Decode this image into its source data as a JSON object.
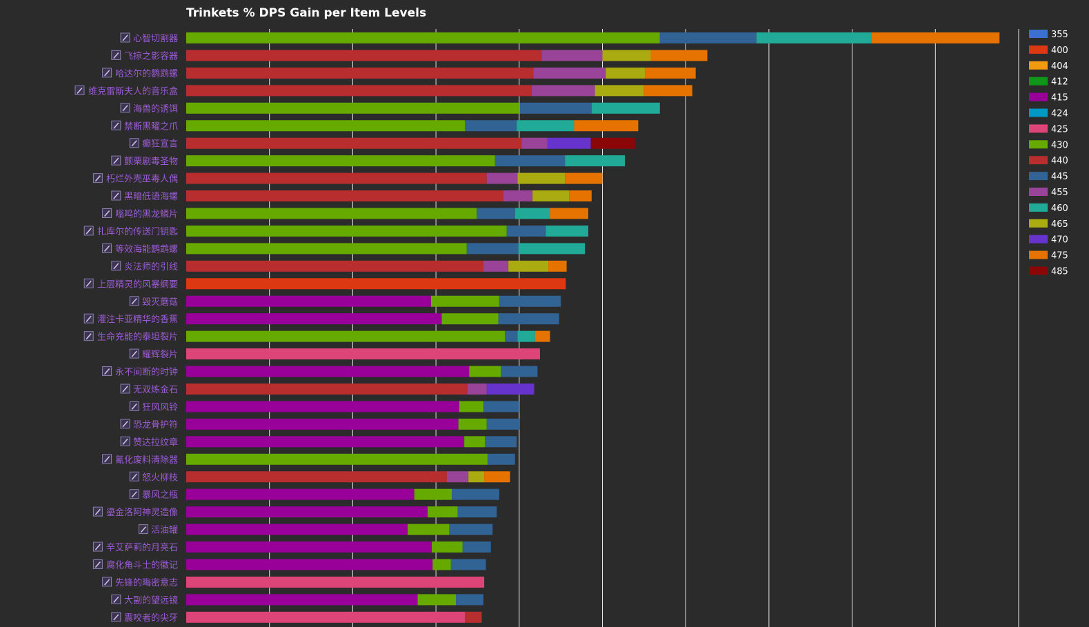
{
  "chart_data": {
    "type": "bar",
    "orientation": "horizontal",
    "stacked": true,
    "title": "Trinkets % DPS Gain per Item Levels",
    "xlim": [
      0,
      10
    ],
    "grid": true,
    "legend_position": "right",
    "legend": [
      {
        "name": "355",
        "color": "#3c6fd1"
      },
      {
        "name": "400",
        "color": "#dc3912"
      },
      {
        "name": "404",
        "color": "#f29a0f"
      },
      {
        "name": "412",
        "color": "#109618"
      },
      {
        "name": "415",
        "color": "#990099"
      },
      {
        "name": "424",
        "color": "#0099c6"
      },
      {
        "name": "425",
        "color": "#dd4477"
      },
      {
        "name": "430",
        "color": "#66aa00"
      },
      {
        "name": "440",
        "color": "#b82e2e"
      },
      {
        "name": "445",
        "color": "#316395"
      },
      {
        "name": "455",
        "color": "#994499"
      },
      {
        "name": "460",
        "color": "#22aa99"
      },
      {
        "name": "465",
        "color": "#aaaa11"
      },
      {
        "name": "470",
        "color": "#6633cc"
      },
      {
        "name": "475",
        "color": "#e67300"
      },
      {
        "name": "485",
        "color": "#8b0707"
      }
    ],
    "rows": [
      {
        "label": "心智切割器",
        "segments": [
          [
            "430",
            5.69
          ],
          [
            "445",
            1.16
          ],
          [
            "460",
            1.38
          ],
          [
            "475",
            1.54
          ]
        ]
      },
      {
        "label": "飞掠之影容器",
        "segments": [
          [
            "440",
            4.27
          ],
          [
            "455",
            0.73
          ],
          [
            "465",
            0.58
          ],
          [
            "475",
            0.68
          ]
        ]
      },
      {
        "label": "哈达尔的鹦鹉螺",
        "segments": [
          [
            "440",
            4.17
          ],
          [
            "455",
            0.87
          ],
          [
            "465",
            0.47
          ],
          [
            "475",
            0.61
          ]
        ]
      },
      {
        "label": "维克雷斯夫人的音乐盒",
        "segments": [
          [
            "440",
            4.15
          ],
          [
            "455",
            0.76
          ],
          [
            "465",
            0.59
          ],
          [
            "475",
            0.58
          ]
        ]
      },
      {
        "label": "海兽的诱饵",
        "segments": [
          [
            "430",
            4.01
          ],
          [
            "445",
            0.86
          ],
          [
            "460",
            0.82
          ]
        ]
      },
      {
        "label": "禁断黑曜之爪",
        "segments": [
          [
            "430",
            3.35
          ],
          [
            "445",
            0.62
          ],
          [
            "460",
            0.69
          ],
          [
            "475",
            0.77
          ]
        ]
      },
      {
        "label": "癫狂宣言",
        "segments": [
          [
            "440",
            4.03
          ],
          [
            "455",
            0.31
          ],
          [
            "470",
            0.52
          ],
          [
            "485",
            0.53
          ]
        ]
      },
      {
        "label": "颤栗剧毒圣物",
        "segments": [
          [
            "430",
            3.71
          ],
          [
            "445",
            0.84
          ],
          [
            "460",
            0.72
          ]
        ]
      },
      {
        "label": "朽烂外壳巫毒人偶",
        "segments": [
          [
            "440",
            3.61
          ],
          [
            "455",
            0.37
          ],
          [
            "465",
            0.57
          ],
          [
            "475",
            0.45
          ]
        ]
      },
      {
        "label": "黑暗低语海螺",
        "segments": [
          [
            "440",
            3.81
          ],
          [
            "455",
            0.35
          ],
          [
            "465",
            0.44
          ],
          [
            "475",
            0.27
          ]
        ]
      },
      {
        "label": "嗡鸣的黑龙鳞片",
        "segments": [
          [
            "430",
            3.49
          ],
          [
            "445",
            0.46
          ],
          [
            "460",
            0.42
          ],
          [
            "475",
            0.46
          ]
        ]
      },
      {
        "label": "扎库尔的传送门钥匙",
        "segments": [
          [
            "430",
            3.85
          ],
          [
            "445",
            0.47
          ],
          [
            "460",
            0.51
          ]
        ]
      },
      {
        "label": "等效海能鹦鹉螺",
        "segments": [
          [
            "430",
            3.37
          ],
          [
            "445",
            0.62
          ],
          [
            "460",
            0.8
          ]
        ]
      },
      {
        "label": "炎法师的引线",
        "segments": [
          [
            "440",
            3.57
          ],
          [
            "455",
            0.3
          ],
          [
            "465",
            0.48
          ],
          [
            "475",
            0.22
          ]
        ]
      },
      {
        "label": "上层精灵的风暴纲要",
        "segments": [
          [
            "400",
            4.56
          ]
        ]
      },
      {
        "label": "毁灭蘑菇",
        "segments": [
          [
            "415",
            2.94
          ],
          [
            "430",
            0.82
          ],
          [
            "445",
            0.74
          ]
        ]
      },
      {
        "label": "灌注卡亚精华的香蕉",
        "segments": [
          [
            "415",
            3.07
          ],
          [
            "430",
            0.68
          ],
          [
            "445",
            0.73
          ]
        ]
      },
      {
        "label": "生命充能的泰坦裂片",
        "segments": [
          [
            "430",
            3.83
          ],
          [
            "445",
            0.15
          ],
          [
            "460",
            0.21
          ],
          [
            "475",
            0.18
          ]
        ]
      },
      {
        "label": "耀辉裂片",
        "segments": [
          [
            "425",
            4.25
          ]
        ]
      },
      {
        "label": "永不间断的时钟",
        "segments": [
          [
            "415",
            3.4
          ],
          [
            "430",
            0.38
          ],
          [
            "445",
            0.44
          ]
        ]
      },
      {
        "label": "无双炼金石",
        "segments": [
          [
            "440",
            3.38
          ],
          [
            "455",
            0.23
          ],
          [
            "470",
            0.57
          ]
        ]
      },
      {
        "label": "狂风风铃",
        "segments": [
          [
            "415",
            3.28
          ],
          [
            "430",
            0.29
          ],
          [
            "445",
            0.43
          ]
        ]
      },
      {
        "label": "恐龙骨护符",
        "segments": [
          [
            "415",
            3.27
          ],
          [
            "430",
            0.34
          ],
          [
            "445",
            0.4
          ]
        ]
      },
      {
        "label": "赞达拉纹章",
        "segments": [
          [
            "415",
            3.34
          ],
          [
            "430",
            0.25
          ],
          [
            "445",
            0.38
          ]
        ]
      },
      {
        "label": "氰化废料清除器",
        "segments": [
          [
            "430",
            3.62
          ],
          [
            "445",
            0.33
          ]
        ]
      },
      {
        "label": "怒火柳枝",
        "segments": [
          [
            "440",
            3.13
          ],
          [
            "455",
            0.26
          ],
          [
            "465",
            0.19
          ],
          [
            "475",
            0.31
          ]
        ]
      },
      {
        "label": "暴风之瓶",
        "segments": [
          [
            "415",
            2.74
          ],
          [
            "430",
            0.45
          ],
          [
            "445",
            0.57
          ]
        ]
      },
      {
        "label": "鎏金洛阿神灵造像",
        "segments": [
          [
            "415",
            2.9
          ],
          [
            "430",
            0.36
          ],
          [
            "445",
            0.47
          ]
        ]
      },
      {
        "label": "活油罐",
        "segments": [
          [
            "415",
            2.66
          ],
          [
            "430",
            0.5
          ],
          [
            "445",
            0.52
          ]
        ]
      },
      {
        "label": "辛艾萨莉的月亮石",
        "segments": [
          [
            "415",
            2.95
          ],
          [
            "430",
            0.37
          ],
          [
            "445",
            0.34
          ]
        ]
      },
      {
        "label": "腐化角斗士的徽记",
        "segments": [
          [
            "415",
            2.96
          ],
          [
            "430",
            0.22
          ],
          [
            "445",
            0.42
          ]
        ]
      },
      {
        "label": "先锋的晦密意志",
        "segments": [
          [
            "425",
            3.58
          ]
        ]
      },
      {
        "label": "大副的望远镜",
        "segments": [
          [
            "415",
            2.78
          ],
          [
            "430",
            0.46
          ],
          [
            "445",
            0.33
          ]
        ]
      },
      {
        "label": "震咬者的尖牙",
        "segments": [
          [
            "425",
            3.35
          ],
          [
            "440",
            0.2
          ]
        ]
      }
    ]
  }
}
